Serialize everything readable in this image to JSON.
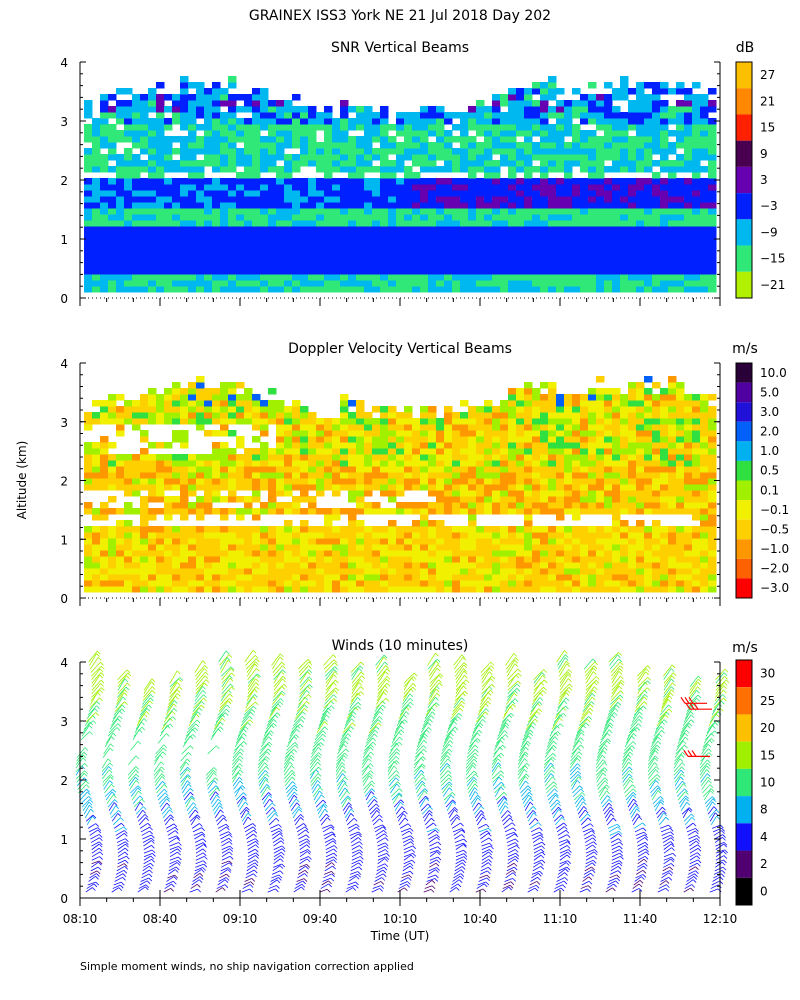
{
  "title": "GRAINEX ISS3 York NE  21 Jul 2018 Day 202",
  "y_axis_label": "Altitude (km)",
  "footnote": "Simple moment winds, no ship navigation correction applied",
  "chart_data": [
    {
      "type": "heatmap",
      "title": "SNR Vertical Beams",
      "xlabel": "",
      "ylabel": "Altitude (km)",
      "xlim": [
        "08:10",
        "12:10"
      ],
      "ylim": [
        0,
        4
      ],
      "y_ticks": [
        "0",
        "1",
        "2",
        "3",
        "4"
      ],
      "colorbar": {
        "unit": "dB",
        "labels": [
          "27",
          "21",
          "15",
          "9",
          "3",
          "−3",
          "−9",
          "−15",
          "−21"
        ],
        "colors": [
          "#ffc000",
          "#ff8800",
          "#ff2000",
          "#4a0050",
          "#6600b0",
          "#0020ff",
          "#00b8f0",
          "#30e878",
          "#b0f000"
        ]
      },
      "features": [
        {
          "altitude_km": [
            0.5,
            1.2
          ],
          "level": "−3 dB"
        },
        {
          "altitude_km": [
            1.6,
            2.0
          ],
          "level": "−3 to 3 dB"
        },
        {
          "altitude_km": [
            2.2,
            3.3
          ],
          "level": "−9 to −15 dB"
        }
      ]
    },
    {
      "type": "heatmap",
      "title": "Doppler Velocity Vertical Beams",
      "xlabel": "",
      "ylabel": "Altitude (km)",
      "xlim": [
        "08:10",
        "12:10"
      ],
      "ylim": [
        0,
        4
      ],
      "y_ticks": [
        "0",
        "1",
        "2",
        "3",
        "4"
      ],
      "colorbar": {
        "unit": "m/s",
        "labels": [
          "10.0",
          "5.0",
          "3.0",
          "2.0",
          "1.0",
          "0.5",
          "0.1",
          "−0.1",
          "−0.5",
          "−1.0",
          "−2.0",
          "−3.0"
        ],
        "colors": [
          "#2a0038",
          "#5000a0",
          "#2010d8",
          "#0060f8",
          "#00b0f0",
          "#30e040",
          "#a0f000",
          "#f0f000",
          "#ffd000",
          "#ff9800",
          "#ff6000",
          "#ff0000"
        ]
      },
      "features": [
        {
          "altitude_km": [
            0.2,
            2.3
          ],
          "level": "−0.1 to −1.0 m/s"
        },
        {
          "altitude_km": [
            2.4,
            3.4
          ],
          "level": "0.1 to −0.5 m/s"
        }
      ]
    },
    {
      "type": "wind_barbs",
      "title": "Winds (10 minutes)",
      "xlabel": "Time (UT)",
      "ylabel": "Altitude (km)",
      "x_ticks": [
        "08:10",
        "08:40",
        "09:10",
        "09:40",
        "10:10",
        "10:40",
        "11:10",
        "11:40",
        "12:10"
      ],
      "xlim": [
        "08:10",
        "12:10"
      ],
      "ylim": [
        0,
        4
      ],
      "y_ticks": [
        "0",
        "1",
        "2",
        "3",
        "4"
      ],
      "interval_minutes": 10,
      "colorbar": {
        "unit": "m/s",
        "labels": [
          "30",
          "25",
          "20",
          "15",
          "10",
          "8",
          "4",
          "2",
          "0"
        ],
        "colors": [
          "#ff0000",
          "#ff7000",
          "#ffc000",
          "#a0f000",
          "#30e878",
          "#00b0f0",
          "#1010ff",
          "#500070",
          "#000000"
        ]
      },
      "profile": [
        {
          "altitude_km": 0.5,
          "speed_ms": 5
        },
        {
          "altitude_km": 1.2,
          "speed_ms": 7
        },
        {
          "altitude_km": 1.8,
          "speed_ms": 10
        },
        {
          "altitude_km": 2.6,
          "speed_ms": 13
        },
        {
          "altitude_km": 3.5,
          "speed_ms": 16
        }
      ]
    }
  ]
}
